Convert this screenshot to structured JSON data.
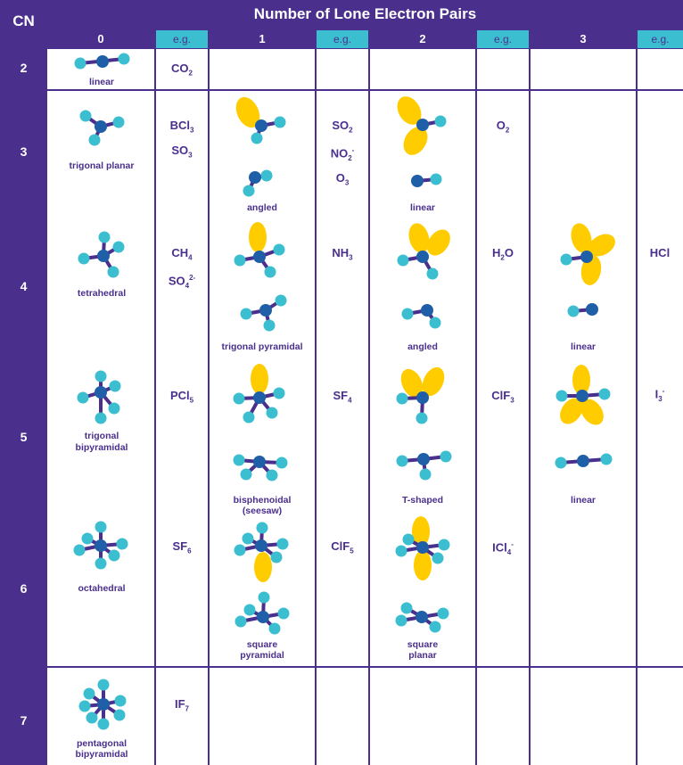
{
  "header": {
    "cn_label": "CN",
    "title": "Number of Lone Electron Pairs"
  },
  "columns": [
    "0",
    "1",
    "2",
    "3"
  ],
  "eg_label": "e.g.",
  "cn_values": [
    "2",
    "3",
    "4",
    "5",
    "6",
    "7"
  ],
  "geometry_labels": {
    "linear_cn2": "linear",
    "trigonal_planar": "trigonal planar",
    "angled_3_1": "angled",
    "linear_3_2": "linear",
    "tetrahedral": "tetrahedral",
    "trigonal_pyramidal": "trigonal pyramidal",
    "angled_4_2": "angled",
    "linear_4_3": "linear",
    "trigonal_bipyramidal_1": "trigonal",
    "trigonal_bipyramidal_2": "bipyramidal",
    "seesaw_1": "bisphenoidal",
    "seesaw_2": "(seesaw)",
    "t_shaped": "T-shaped",
    "linear_5_3": "linear",
    "octahedral": "octahedral",
    "square_pyramidal_1": "square",
    "square_pyramidal_2": "pyramidal",
    "square_planar_1": "square",
    "square_planar_2": "planar",
    "pentagonal_1": "pentagonal",
    "pentagonal_2": "bipyramidal"
  },
  "examples": {
    "cn2_0": [
      [
        "CO",
        "2",
        ""
      ]
    ],
    "cn3_0": [
      [
        "BCl",
        "3",
        ""
      ],
      [
        "SO",
        "3",
        ""
      ]
    ],
    "cn3_1": [
      [
        "SO",
        "2",
        ""
      ],
      [
        "NO",
        "2",
        "-"
      ],
      [
        "O",
        "3",
        ""
      ]
    ],
    "cn3_2": [
      [
        "O",
        "2",
        ""
      ]
    ],
    "cn4_0": [
      [
        "CH",
        "4",
        ""
      ],
      [
        "SO",
        "4",
        "2-"
      ]
    ],
    "cn4_1": [
      [
        "NH",
        "3",
        ""
      ]
    ],
    "cn4_2": [
      [
        "H",
        "2",
        ""
      ],
      [
        "O",
        "",
        ""
      ]
    ],
    "cn4_3": [
      [
        "HCl",
        "",
        ""
      ]
    ],
    "cn5_0": [
      [
        "PCl",
        "5",
        ""
      ]
    ],
    "cn5_1": [
      [
        "SF",
        "4",
        ""
      ]
    ],
    "cn5_2": [
      [
        "ClF",
        "3",
        ""
      ]
    ],
    "cn5_3": [
      [
        "I",
        "3",
        "-"
      ]
    ],
    "cn6_0": [
      [
        "SF",
        "6",
        ""
      ]
    ],
    "cn6_1": [
      [
        "ClF",
        "5",
        ""
      ]
    ],
    "cn6_2": [
      [
        "ICl",
        "4",
        "-"
      ]
    ],
    "cn7_0": [
      [
        "IF",
        "7",
        ""
      ]
    ]
  },
  "colors": {
    "header": "#4a2f8c",
    "eg_header": "#3bbfd0",
    "ligand": "#3bbfd0",
    "center": "#1f5fa8",
    "bond": "#4a2f8c",
    "lone_pair": "#ffcc00"
  }
}
